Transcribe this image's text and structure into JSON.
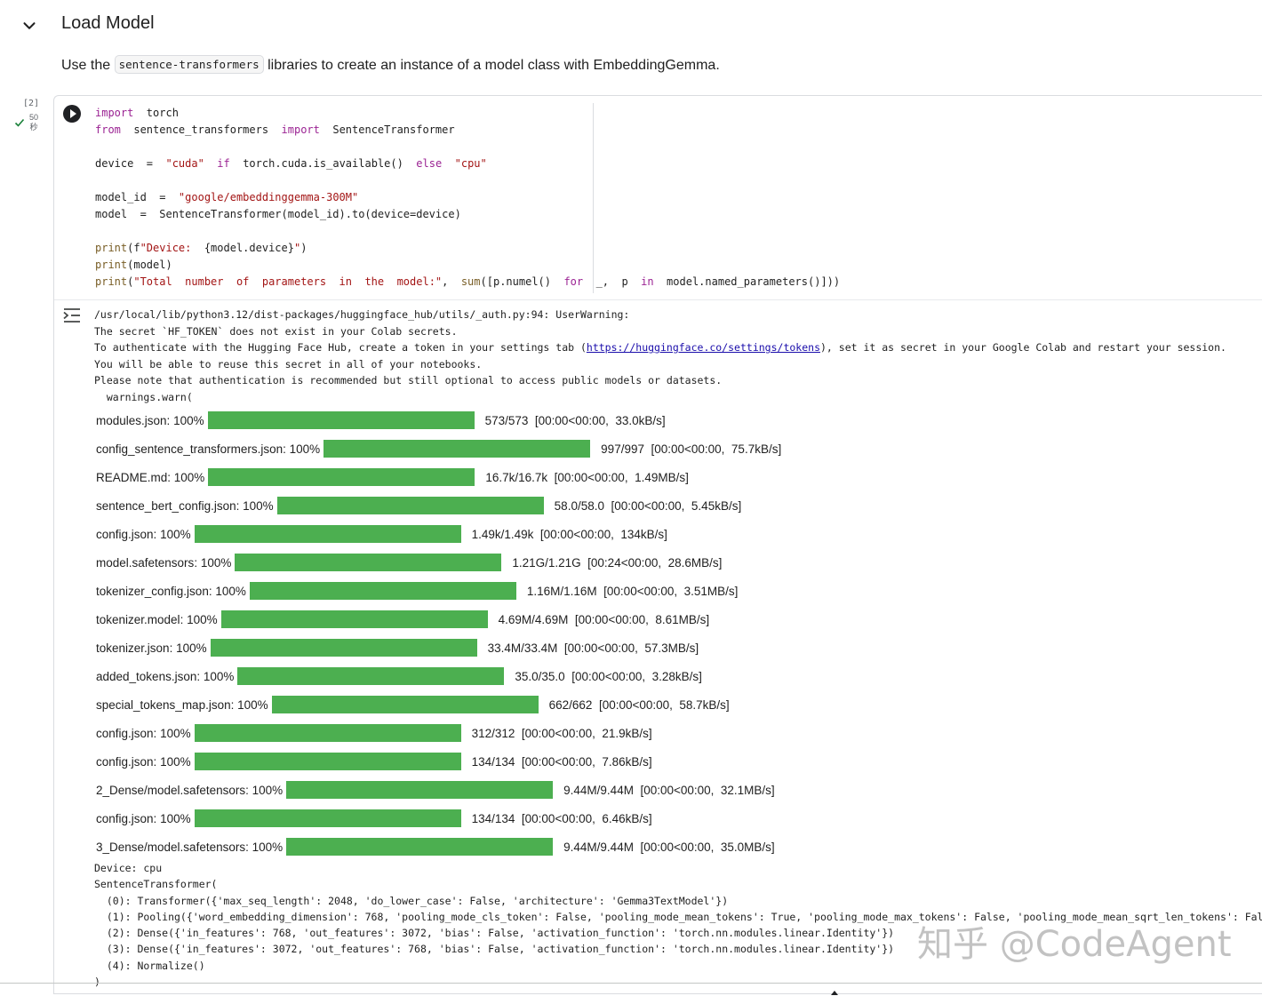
{
  "section": {
    "title": "Load Model"
  },
  "description": {
    "prefix": "Use the ",
    "code": "sentence-transformers",
    "suffix": " libraries to create an instance of a model class with EmbeddingGemma."
  },
  "cell": {
    "exec_count": "[2]",
    "exec_time_value": "50",
    "exec_time_unit": "秒"
  },
  "code": {
    "line1": "import  torch",
    "line2": "from  sentence_transformers  import  SentenceTransformer",
    "line3": "device  =  \"cuda\"  if  torch.cuda.is_available()  else  \"cpu\"",
    "line4": "model_id  =  \"google/embeddinggemma-300M\"",
    "line5": "model  =  SentenceTransformer(model_id).to(device=device)",
    "line6": "print(f\"Device:  {model.device}\")",
    "line7": "print(model)",
    "line8": "print(\"Total  number  of  parameters  in  the  model:\",  sum([p.numel()  for  _,  p  in  model.named_parameters()]))"
  },
  "warning": {
    "line1": "/usr/local/lib/python3.12/dist-packages/huggingface_hub/utils/_auth.py:94: UserWarning: ",
    "line2": "The secret `HF_TOKEN` does not exist in your Colab secrets.",
    "line3_prefix": "To authenticate with the Hugging Face Hub, create a token in your settings tab (",
    "line3_link": "https://huggingface.co/settings/tokens",
    "line3_suffix": "), set it as secret in your Google Colab and restart your session.",
    "line4": "You will be able to reuse this secret in all of your notebooks.",
    "line5": "Please note that authentication is recommended but still optional to access public models or datasets.",
    "line6": "  warnings.warn("
  },
  "progress": [
    {
      "file": "modules.json",
      "pct": "100%",
      "progress_fraction": 1.0,
      "stats": "573/573  [00:00<00:00,  33.0kB/s]"
    },
    {
      "file": "config_sentence_transformers.json",
      "pct": "100%",
      "progress_fraction": 1.0,
      "stats": "997/997  [00:00<00:00,  75.7kB/s]"
    },
    {
      "file": "README.md",
      "pct": "100%",
      "progress_fraction": 1.0,
      "stats": "16.7k/16.7k  [00:00<00:00,  1.49MB/s]"
    },
    {
      "file": "sentence_bert_config.json",
      "pct": "100%",
      "progress_fraction": 1.0,
      "stats": "58.0/58.0  [00:00<00:00,  5.45kB/s]"
    },
    {
      "file": "config.json",
      "pct": "100%",
      "progress_fraction": 1.0,
      "stats": "1.49k/1.49k  [00:00<00:00,  134kB/s]"
    },
    {
      "file": "model.safetensors",
      "pct": "100%",
      "progress_fraction": 1.0,
      "stats": "1.21G/1.21G  [00:24<00:00,  28.6MB/s]"
    },
    {
      "file": "tokenizer_config.json",
      "pct": "100%",
      "progress_fraction": 1.0,
      "stats": "1.16M/1.16M  [00:00<00:00,  3.51MB/s]"
    },
    {
      "file": "tokenizer.model",
      "pct": "100%",
      "progress_fraction": 1.0,
      "stats": "4.69M/4.69M  [00:00<00:00,  8.61MB/s]"
    },
    {
      "file": "tokenizer.json",
      "pct": "100%",
      "progress_fraction": 1.0,
      "stats": "33.4M/33.4M  [00:00<00:00,  57.3MB/s]"
    },
    {
      "file": "added_tokens.json",
      "pct": "100%",
      "progress_fraction": 1.0,
      "stats": "35.0/35.0  [00:00<00:00,  3.28kB/s]"
    },
    {
      "file": "special_tokens_map.json",
      "pct": "100%",
      "progress_fraction": 1.0,
      "stats": "662/662  [00:00<00:00,  58.7kB/s]"
    },
    {
      "file": "config.json",
      "pct": "100%",
      "progress_fraction": 1.0,
      "stats": "312/312  [00:00<00:00,  21.9kB/s]"
    },
    {
      "file": "config.json",
      "pct": "100%",
      "progress_fraction": 1.0,
      "stats": "134/134  [00:00<00:00,  7.86kB/s]"
    },
    {
      "file": "2_Dense/model.safetensors",
      "pct": "100%",
      "progress_fraction": 1.0,
      "stats": "9.44M/9.44M  [00:00<00:00,  32.1MB/s]"
    },
    {
      "file": "config.json",
      "pct": "100%",
      "progress_fraction": 1.0,
      "stats": "134/134  [00:00<00:00,  6.46kB/s]"
    },
    {
      "file": "3_Dense/model.safetensors",
      "pct": "100%",
      "progress_fraction": 1.0,
      "stats": "9.44M/9.44M  [00:00<00:00,  35.0MB/s]"
    }
  ],
  "result": {
    "line1": "Device: cpu",
    "line2": "SentenceTransformer(",
    "line3": "  (0): Transformer({'max_seq_length': 2048, 'do_lower_case': False, 'architecture': 'Gemma3TextModel'})",
    "line4": "  (1): Pooling({'word_embedding_dimension': 768, 'pooling_mode_cls_token': False, 'pooling_mode_mean_tokens': True, 'pooling_mode_max_tokens': False, 'pooling_mode_mean_sqrt_len_tokens': False",
    "line5": "  (2): Dense({'in_features': 768, 'out_features': 3072, 'bias': False, 'activation_function': 'torch.nn.modules.linear.Identity'})",
    "line6": "  (3): Dense({'in_features': 3072, 'out_features': 768, 'bias': False, 'activation_function': 'torch.nn.modules.linear.Identity'})",
    "line7": "  (4): Normalize()",
    "line8": ")"
  },
  "watermark": "知乎 @CodeAgent",
  "colors": {
    "progress_bar": "#4caf50",
    "keyword": "#9b2393",
    "string": "#a31515",
    "link": "#1a0dab"
  },
  "icons": [
    "chevron-down-icon",
    "check-icon",
    "run-icon",
    "output-toggle-icon",
    "scroll-arrow-icon"
  ]
}
